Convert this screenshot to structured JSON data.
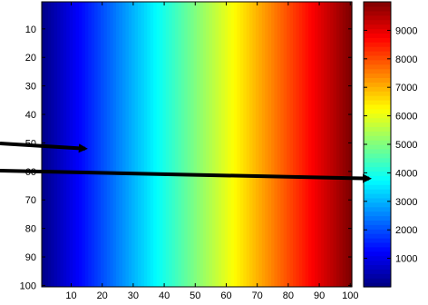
{
  "chart_data": {
    "type": "heatmap",
    "x_ticks": [
      10,
      20,
      30,
      40,
      50,
      60,
      70,
      80,
      90,
      100
    ],
    "y_ticks": [
      10,
      20,
      30,
      40,
      50,
      60,
      70,
      80,
      90,
      100
    ],
    "xlim": [
      0.5,
      100.5
    ],
    "ylim": [
      0.5,
      100.5
    ],
    "y_direction": "reversed",
    "values_description_grid": "each column value increases linearly with x; all rows identical",
    "column_values": {
      "x_start": 1,
      "x_end": 100,
      "value_start": 100,
      "value_end": 10000
    },
    "colormap": "jet",
    "colorbar": {
      "range": [
        0,
        10000
      ],
      "ticks": [
        1000,
        2000,
        3000,
        4000,
        5000,
        6000,
        7000,
        8000,
        9000
      ]
    },
    "annotations": [
      {
        "type": "arrow",
        "points_to": "heatmap near x=15, y=52"
      },
      {
        "type": "arrow",
        "points_to": "colorbar near value 3800"
      }
    ]
  }
}
